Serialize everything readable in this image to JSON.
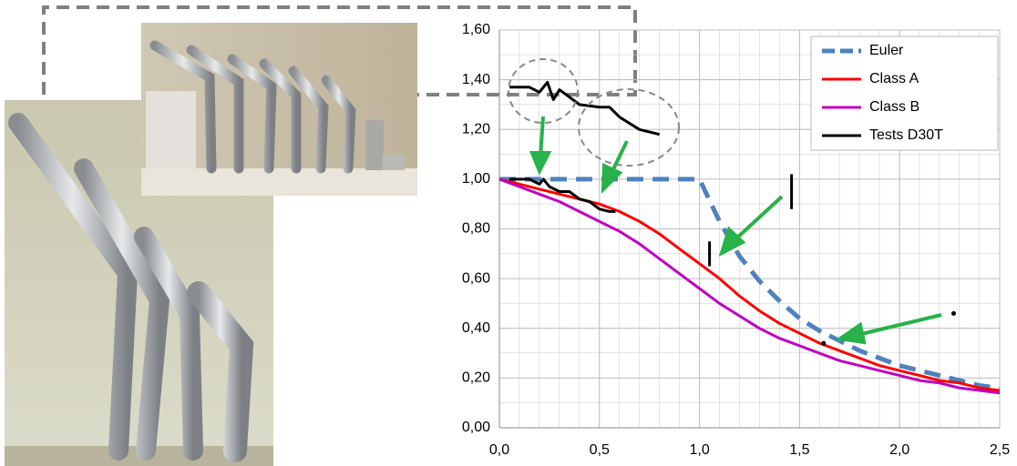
{
  "chart_data": {
    "type": "line",
    "x": [
      0,
      0.1,
      0.2,
      0.3,
      0.4,
      0.5,
      0.6,
      0.7,
      0.8,
      0.9,
      1.0,
      1.1,
      1.2,
      1.3,
      1.4,
      1.5,
      1.6,
      1.7,
      1.8,
      1.9,
      2.0,
      2.1,
      2.2,
      2.3,
      2.4,
      2.5
    ],
    "series": [
      {
        "name": "Euler",
        "color": "#4f81bd",
        "line_style": "dashed",
        "values": [
          1.0,
          1.0,
          1.0,
          1.0,
          1.0,
          1.0,
          1.0,
          1.0,
          1.0,
          1.0,
          1.0,
          0.83,
          0.69,
          0.59,
          0.51,
          0.44,
          0.39,
          0.35,
          0.31,
          0.28,
          0.25,
          0.23,
          0.21,
          0.19,
          0.17,
          0.16
        ]
      },
      {
        "name": "Class A",
        "color": "#ff0000",
        "line_style": "solid",
        "values": [
          1.0,
          0.98,
          0.96,
          0.94,
          0.92,
          0.9,
          0.87,
          0.83,
          0.78,
          0.72,
          0.66,
          0.6,
          0.53,
          0.47,
          0.42,
          0.38,
          0.34,
          0.31,
          0.28,
          0.25,
          0.23,
          0.21,
          0.19,
          0.18,
          0.16,
          0.15
        ]
      },
      {
        "name": "Class B",
        "color": "#c000c0",
        "line_style": "solid",
        "values": [
          1.0,
          0.97,
          0.94,
          0.91,
          0.87,
          0.83,
          0.79,
          0.74,
          0.68,
          0.62,
          0.56,
          0.5,
          0.45,
          0.4,
          0.36,
          0.33,
          0.3,
          0.27,
          0.25,
          0.23,
          0.21,
          0.19,
          0.18,
          0.16,
          0.15,
          0.14
        ]
      },
      {
        "name": "Tests D30T",
        "color": "#000000",
        "line_style": "solid",
        "x": [
          0.05,
          0.15,
          0.2,
          0.24,
          0.27,
          0.3,
          0.35,
          0.4,
          0.5,
          0.55,
          0.6,
          0.7,
          0.8,
          null,
          0.05,
          0.15,
          0.2,
          0.22,
          0.25,
          0.3,
          0.35,
          0.4,
          0.45,
          0.5,
          0.55,
          0.58,
          null,
          1.46,
          1.46,
          null,
          1.05,
          1.05,
          null,
          2.27,
          null,
          1.62
        ],
        "values": [
          1.37,
          1.37,
          1.35,
          1.39,
          1.32,
          1.36,
          1.33,
          1.3,
          1.29,
          1.29,
          1.25,
          1.2,
          1.18,
          null,
          1.0,
          1.0,
          0.98,
          1.0,
          0.97,
          0.95,
          0.95,
          0.92,
          0.91,
          0.88,
          0.87,
          0.87,
          null,
          0.88,
          1.02,
          null,
          0.65,
          0.75,
          null,
          0.46,
          null,
          0.34
        ]
      }
    ],
    "xlim": [
      0,
      2.5
    ],
    "xticks": [
      {
        "value": 0,
        "label": "0,0"
      },
      {
        "value": 0.5,
        "label": "0,5"
      },
      {
        "value": 1.0,
        "label": "1,0"
      },
      {
        "value": 1.5,
        "label": "1,5"
      },
      {
        "value": 2.0,
        "label": "2,0"
      },
      {
        "value": 2.5,
        "label": "2,5"
      }
    ],
    "ylim": [
      0,
      1.6
    ],
    "yticks": [
      {
        "value": 0,
        "label": "0,00"
      },
      {
        "value": 0.2,
        "label": "0,20"
      },
      {
        "value": 0.4,
        "label": "0,40"
      },
      {
        "value": 0.6,
        "label": "0,60"
      },
      {
        "value": 0.8,
        "label": "0,80"
      },
      {
        "value": 1.0,
        "label": "1,00"
      },
      {
        "value": 1.2,
        "label": "1,20"
      },
      {
        "value": 1.4,
        "label": "1,40"
      },
      {
        "value": 1.6,
        "label": "1,60"
      }
    ],
    "grid": true,
    "legend": "upper right"
  }
}
